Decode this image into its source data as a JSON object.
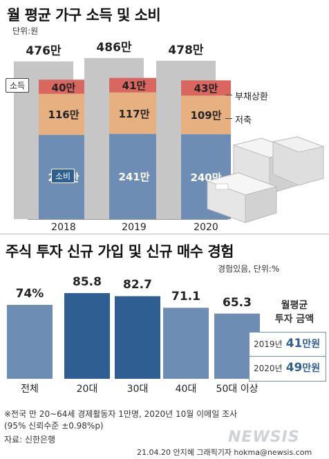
{
  "chart_data": [
    {
      "type": "bar",
      "title": "월 평균 가구 소득 및 소비",
      "unit": "단위:원",
      "categories": [
        "2018",
        "2019",
        "2020"
      ],
      "income_total": [
        476,
        486,
        478
      ],
      "income_total_labels": [
        "476만",
        "486만",
        "478만"
      ],
      "series": [
        {
          "name": "소비",
          "values": [
            238,
            241,
            240
          ],
          "labels": [
            "238만",
            "241만",
            "240만"
          ],
          "color": "#6e8db5"
        },
        {
          "name": "저축",
          "values": [
            116,
            117,
            109
          ],
          "labels": [
            "116만",
            "117만",
            "109만"
          ],
          "color": "#e6b080"
        },
        {
          "name": "부채상환",
          "values": [
            40,
            41,
            43
          ],
          "labels": [
            "40만",
            "41만",
            "43만"
          ],
          "color": "#d9665f"
        }
      ],
      "income_label": "소득",
      "colors": {
        "income": "#c6c6c6"
      }
    },
    {
      "type": "bar",
      "title": "주식 투자 신규 가입 및 신규 매수 경험",
      "unit": "경험있음, 단위:%",
      "categories": [
        "전체",
        "20대",
        "30대",
        "40대",
        "50대 이상"
      ],
      "values": [
        74,
        85.8,
        82.7,
        71.1,
        65.3
      ],
      "value_labels": [
        "74%",
        "85.8",
        "82.7",
        "71.1",
        "65.3"
      ],
      "colors": [
        "#6e8db5",
        "#2f5f92",
        "#2f5f92",
        "#6e8db5",
        "#6e8db5"
      ],
      "side_panel": {
        "title_line1": "월평균",
        "title_line2": "투자 금액",
        "rows": [
          {
            "year": "2019년",
            "amount": "41",
            "unit": "만원"
          },
          {
            "year": "2020년",
            "amount": "49",
            "unit": "만원"
          }
        ]
      }
    }
  ],
  "footnote1": "※전국 만 20~64세 경제활동자 1만명, 2020년 10월 이메일 조사",
  "footnote2": "(95% 신뢰수준 ±0.98%p)",
  "source": "자료: 신한은행",
  "credit": "21.04.20 안지혜 그래픽기자 hokma@newsis.com",
  "logo": "NEWSIS"
}
